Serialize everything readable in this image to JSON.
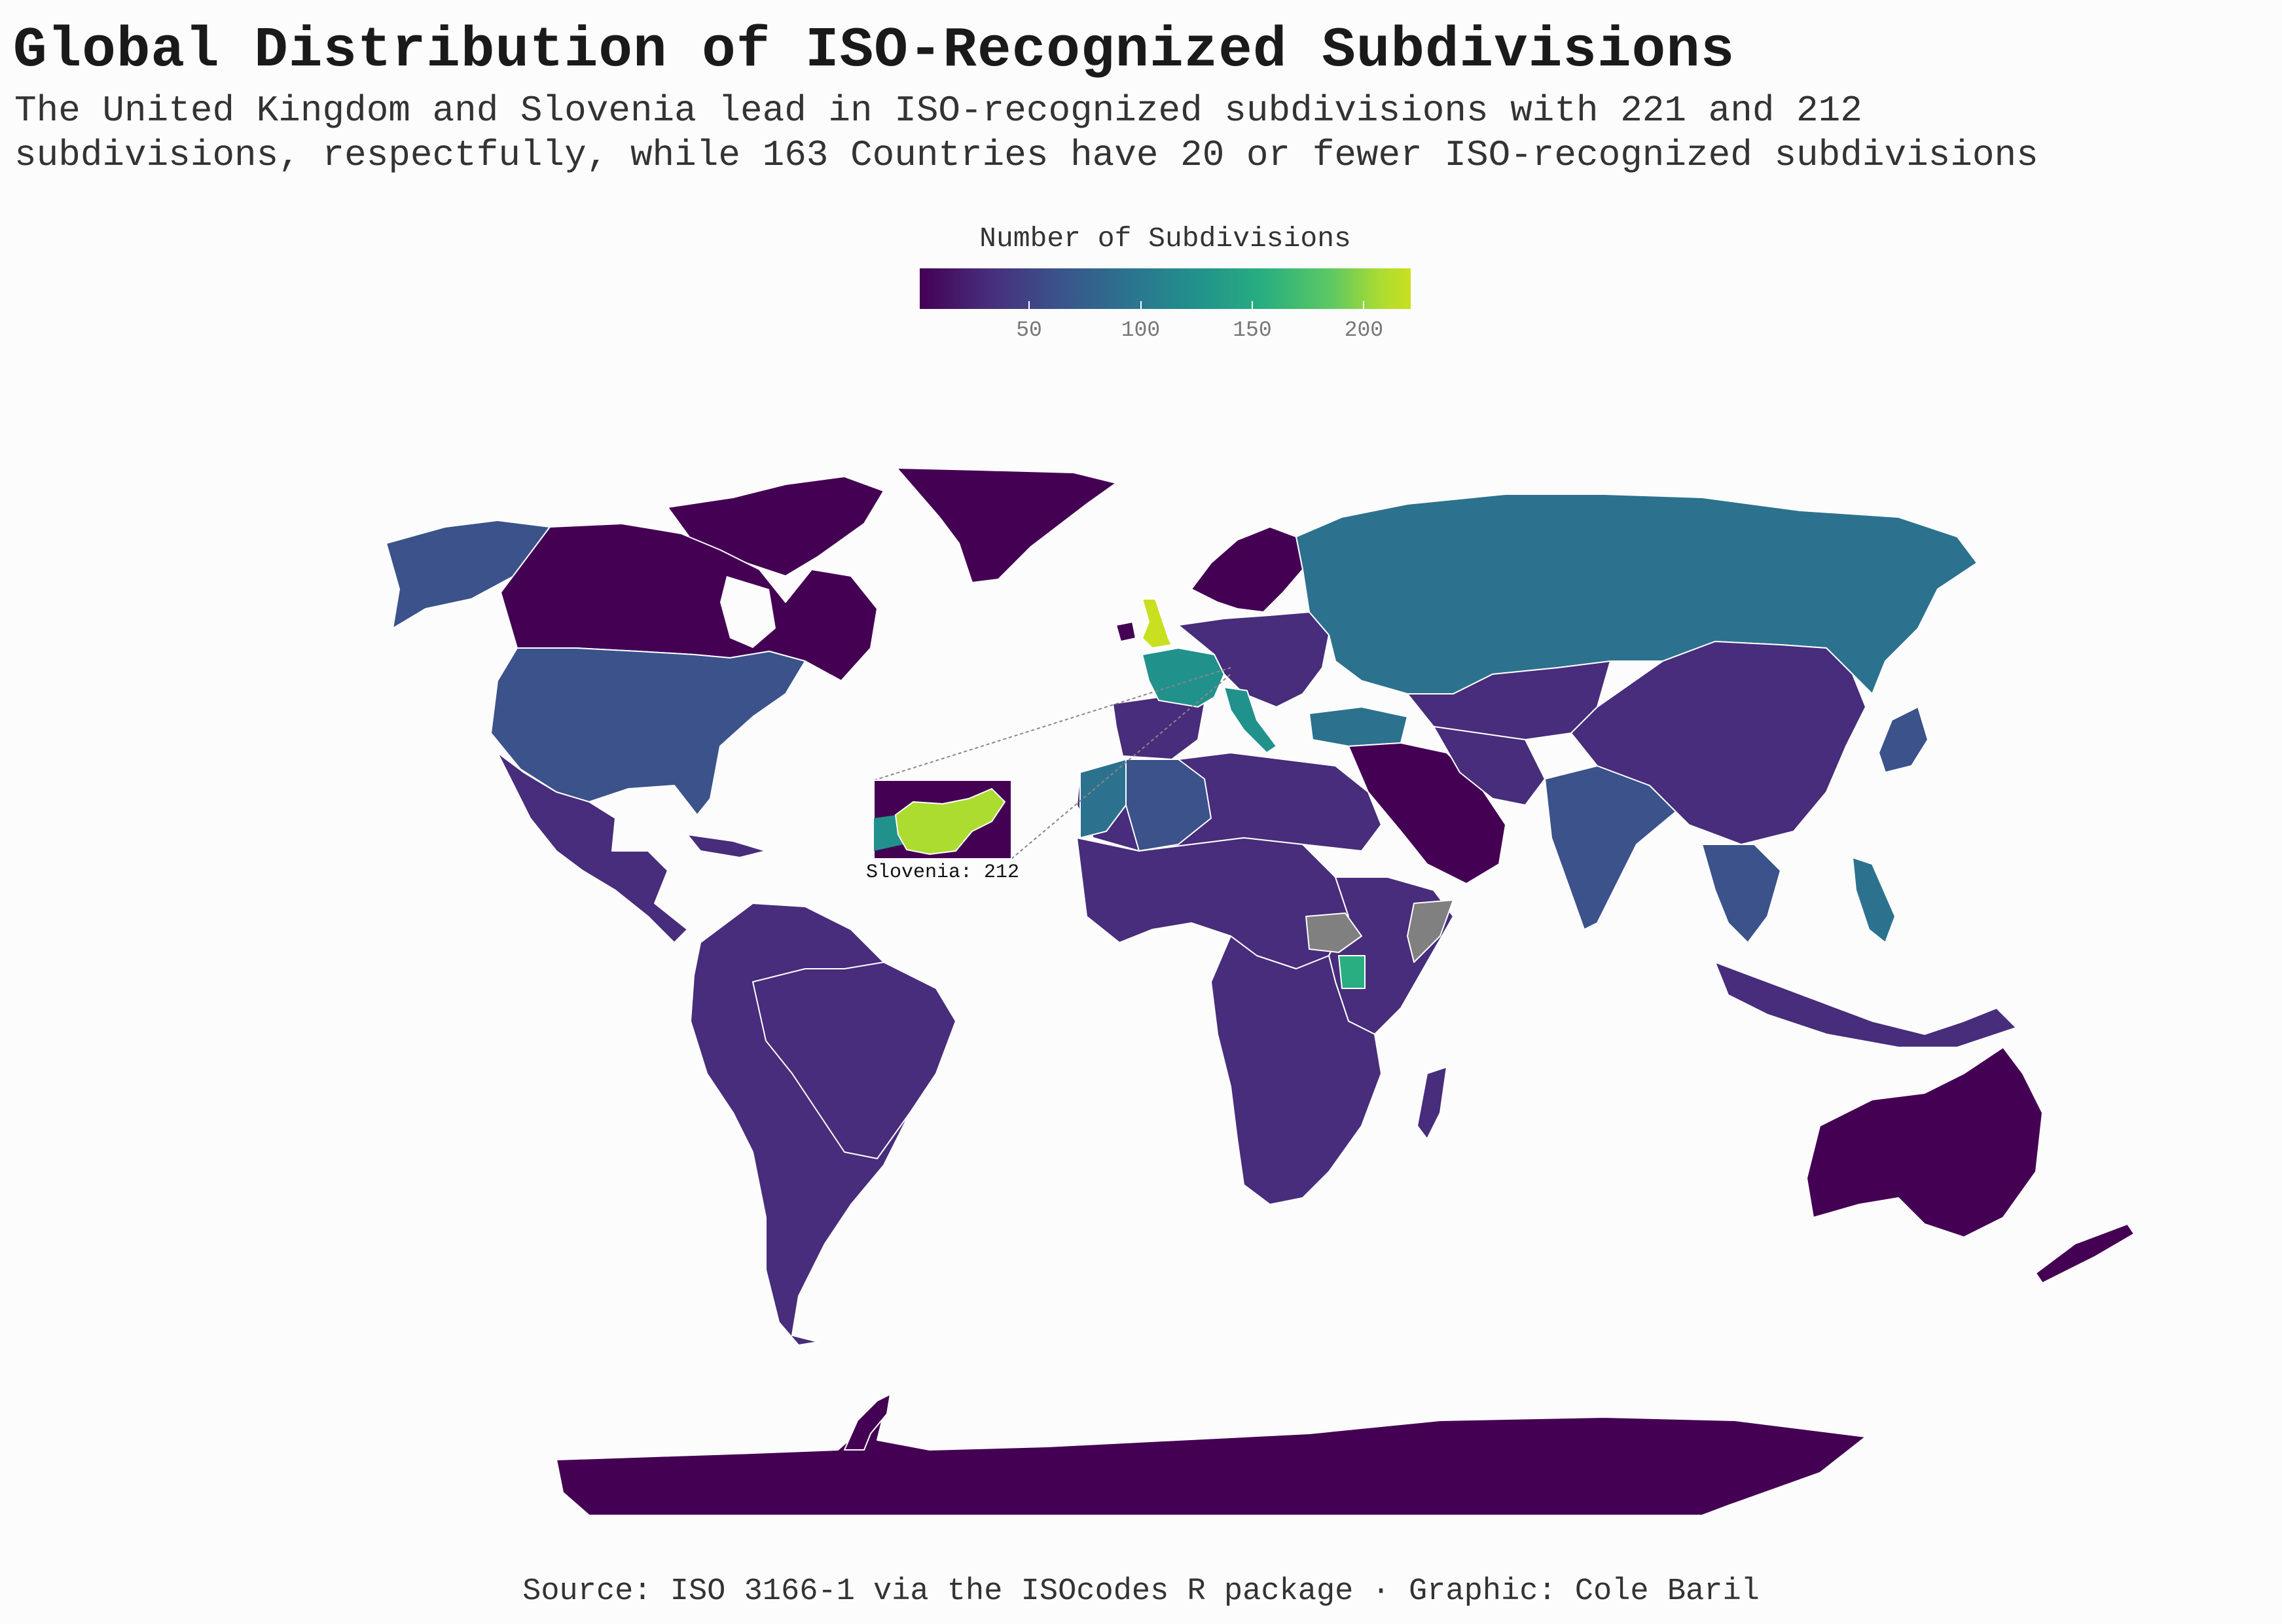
{
  "title": "Global Distribution of ISO-Recognized Subdivisions",
  "subtitle_lines": [
    "The United Kingdom and Slovenia lead in ISO-recognized subdivisions with 221 and 212",
    "subdivisions, respectfully, while 163 Countries have 20 or fewer ISO-recognized subdivisions"
  ],
  "legend": {
    "title": "Number of Subdivisions",
    "ticks": [
      50,
      100,
      150,
      200
    ],
    "tick_labels": [
      "50",
      "100",
      "150",
      "200"
    ],
    "range": [
      1,
      221
    ],
    "palette": "viridis"
  },
  "inset": {
    "label": "Slovenia: 212",
    "country": "Slovenia",
    "value": 212
  },
  "highlighted_values": {
    "United Kingdom": 221,
    "Slovenia": 212
  },
  "colors": {
    "background": "#fcfcfc",
    "no_data": "#808080",
    "border": "#ffffff",
    "viridis_low": "#440154",
    "viridis_high": "#c8e020"
  },
  "source": "Source: ISO 3166-1 via the ISOcodes R package · Graphic: Cole Baril"
}
